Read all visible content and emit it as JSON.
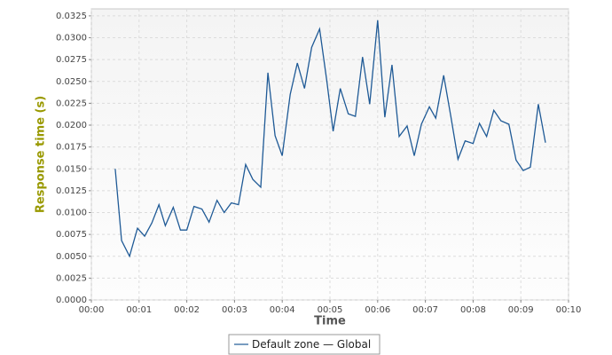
{
  "chart_data": {
    "type": "line",
    "x_label": "Time",
    "y_label": "Response time (s)",
    "xlim": [
      0,
      600
    ],
    "ylim": [
      0,
      0.0333
    ],
    "xticks": [
      {
        "value": 0,
        "label": "00:00"
      },
      {
        "value": 60,
        "label": "00:01"
      },
      {
        "value": 120,
        "label": "00:02"
      },
      {
        "value": 180,
        "label": "00:03"
      },
      {
        "value": 240,
        "label": "00:04"
      },
      {
        "value": 300,
        "label": "00:05"
      },
      {
        "value": 360,
        "label": "00:06"
      },
      {
        "value": 420,
        "label": "00:07"
      },
      {
        "value": 480,
        "label": "00:08"
      },
      {
        "value": 540,
        "label": "00:09"
      },
      {
        "value": 600,
        "label": "00:10"
      }
    ],
    "yticks": [
      {
        "value": 0,
        "label": "0.0000"
      },
      0.0025,
      {
        "value": 0.005,
        "label": "0.0050"
      },
      0.0075,
      {
        "value": 0.01,
        "label": "0.0100"
      },
      0.0125,
      {
        "value": 0.015,
        "label": "0.0150"
      },
      0.0175,
      {
        "value": 0.02,
        "label": "0.0200"
      },
      0.0225,
      {
        "value": 0.025,
        "label": "0.0250"
      },
      0.0275,
      {
        "value": 0.03,
        "label": "0.0300"
      },
      0.0325
    ],
    "grid": true,
    "x": [
      30,
      38,
      48,
      58,
      67,
      76,
      85,
      93,
      103,
      112,
      120,
      129,
      139,
      148,
      158,
      167,
      176,
      185,
      194,
      203,
      213,
      222,
      231,
      240,
      250,
      259,
      268,
      277,
      287,
      296,
      304,
      313,
      323,
      332,
      341,
      350,
      360,
      369,
      378,
      387,
      397,
      406,
      415,
      425,
      433,
      443,
      452,
      461,
      470,
      480,
      488,
      497,
      506,
      515,
      525,
      534,
      543,
      552,
      562,
      571
    ],
    "series": [
      {
        "name": "Default zone — Global",
        "color": "#1f5a96",
        "values": [
          0.015,
          0.0068,
          0.005,
          0.0082,
          0.0073,
          0.0088,
          0.0109,
          0.0085,
          0.0106,
          0.008,
          0.008,
          0.0107,
          0.0104,
          0.0089,
          0.0114,
          0.01,
          0.0111,
          0.0109,
          0.0155,
          0.0138,
          0.0129,
          0.026,
          0.0188,
          0.0165,
          0.0235,
          0.0271,
          0.0242,
          0.0289,
          0.031,
          0.0251,
          0.0193,
          0.0242,
          0.0213,
          0.021,
          0.0278,
          0.0224,
          0.032,
          0.0209,
          0.0269,
          0.0187,
          0.0199,
          0.0165,
          0.0201,
          0.0221,
          0.0208,
          0.0257,
          0.021,
          0.0161,
          0.0182,
          0.0179,
          0.0202,
          0.0187,
          0.0217,
          0.0205,
          0.0201,
          0.016,
          0.0148,
          0.0152,
          0.0224,
          0.018
        ]
      }
    ]
  }
}
